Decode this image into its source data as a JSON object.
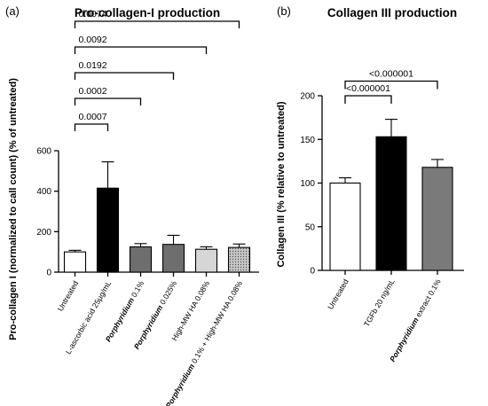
{
  "chart_data": [
    {
      "panel_label": "(a)",
      "type": "bar",
      "title": "Pro-collagen-I production",
      "ylabel": "Pro-collagen I (normalized to call count) (% of untreated)",
      "ylim": [
        0,
        600
      ],
      "yticks": [
        0,
        200,
        400,
        600
      ],
      "categories": [
        [
          {
            "t": "Untreated",
            "i": false
          }
        ],
        [
          {
            "t": "L-ascorbic acid 25µg/mL",
            "i": false
          }
        ],
        [
          {
            "t": "Porphyridium",
            "i": true
          },
          {
            "t": " 0.1%",
            "i": false
          }
        ],
        [
          {
            "t": "Porphyridium",
            "i": true
          },
          {
            "t": " 0.025%",
            "i": false
          }
        ],
        [
          {
            "t": "High-MW HA 0.08%",
            "i": false
          }
        ],
        [
          {
            "t": "Porphyridium",
            "i": true
          },
          {
            "t": " 0.1% + High-MW HA 0.08%",
            "i": false
          }
        ]
      ],
      "values": [
        100,
        415,
        125,
        137,
        113,
        122
      ],
      "errors": [
        8,
        130,
        16,
        45,
        12,
        17
      ],
      "bar_fills": [
        "#ffffff",
        "#000000",
        "#6e6e6e",
        "#6e6e6e",
        "#d6d6d6",
        "dots"
      ],
      "comparisons": [
        {
          "from": 0,
          "to": 1,
          "label": "0.0007"
        },
        {
          "from": 0,
          "to": 2,
          "label": "0.0002"
        },
        {
          "from": 0,
          "to": 3,
          "label": "0.0192"
        },
        {
          "from": 0,
          "to": 4,
          "label": "0.0092"
        },
        {
          "from": 0,
          "to": 5,
          "label": "0.0074"
        }
      ]
    },
    {
      "panel_label": "(b)",
      "type": "bar",
      "title": "Collagen III production",
      "ylabel": "Collagen III (% relative to untreated)",
      "ylim": [
        0,
        200
      ],
      "yticks": [
        0,
        50,
        100,
        150,
        200
      ],
      "categories": [
        [
          {
            "t": "Untreated",
            "i": false
          }
        ],
        [
          {
            "t": "TGFb 20 ng/mL",
            "i": false
          }
        ],
        [
          {
            "t": "Porphyridium",
            "i": true
          },
          {
            "t": " extract 0.1%",
            "i": false
          }
        ]
      ],
      "values": [
        100,
        153,
        118
      ],
      "errors": [
        6,
        20,
        9
      ],
      "bar_fills": [
        "#ffffff",
        "#000000",
        "#7a7a7a"
      ],
      "comparisons": [
        {
          "from": 0,
          "to": 1,
          "label": "<0.000001"
        },
        {
          "from": 0,
          "to": 2,
          "label": "<0.000001"
        }
      ]
    }
  ]
}
